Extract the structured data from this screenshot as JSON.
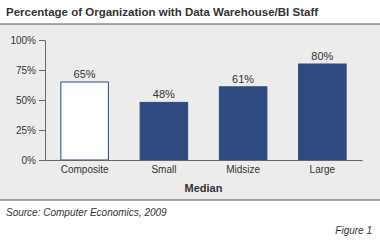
{
  "chart_data": {
    "type": "bar",
    "title": "Percentage of Organization with Data Warehouse/BI Staff",
    "categories": [
      "Composite",
      "Small",
      "Midsize",
      "Large"
    ],
    "values": [
      65,
      48,
      61,
      80
    ],
    "value_labels": [
      "65%",
      "48%",
      "61%",
      "80%"
    ],
    "colors": [
      "#ffffff",
      "#2e4a7e",
      "#2e4a7e",
      "#2e4a7e"
    ],
    "x_label": "Median",
    "ylim": [
      0,
      100
    ],
    "yticks": [
      {
        "value": 0,
        "label": "0%"
      },
      {
        "value": 25,
        "label": "25%"
      },
      {
        "value": 50,
        "label": "50%"
      },
      {
        "value": 75,
        "label": "75%"
      },
      {
        "value": 100,
        "label": "100%"
      }
    ],
    "grid": false,
    "data_labels": true,
    "source": "Source: Computer Economics, 2009",
    "figure": "Figure 1"
  }
}
